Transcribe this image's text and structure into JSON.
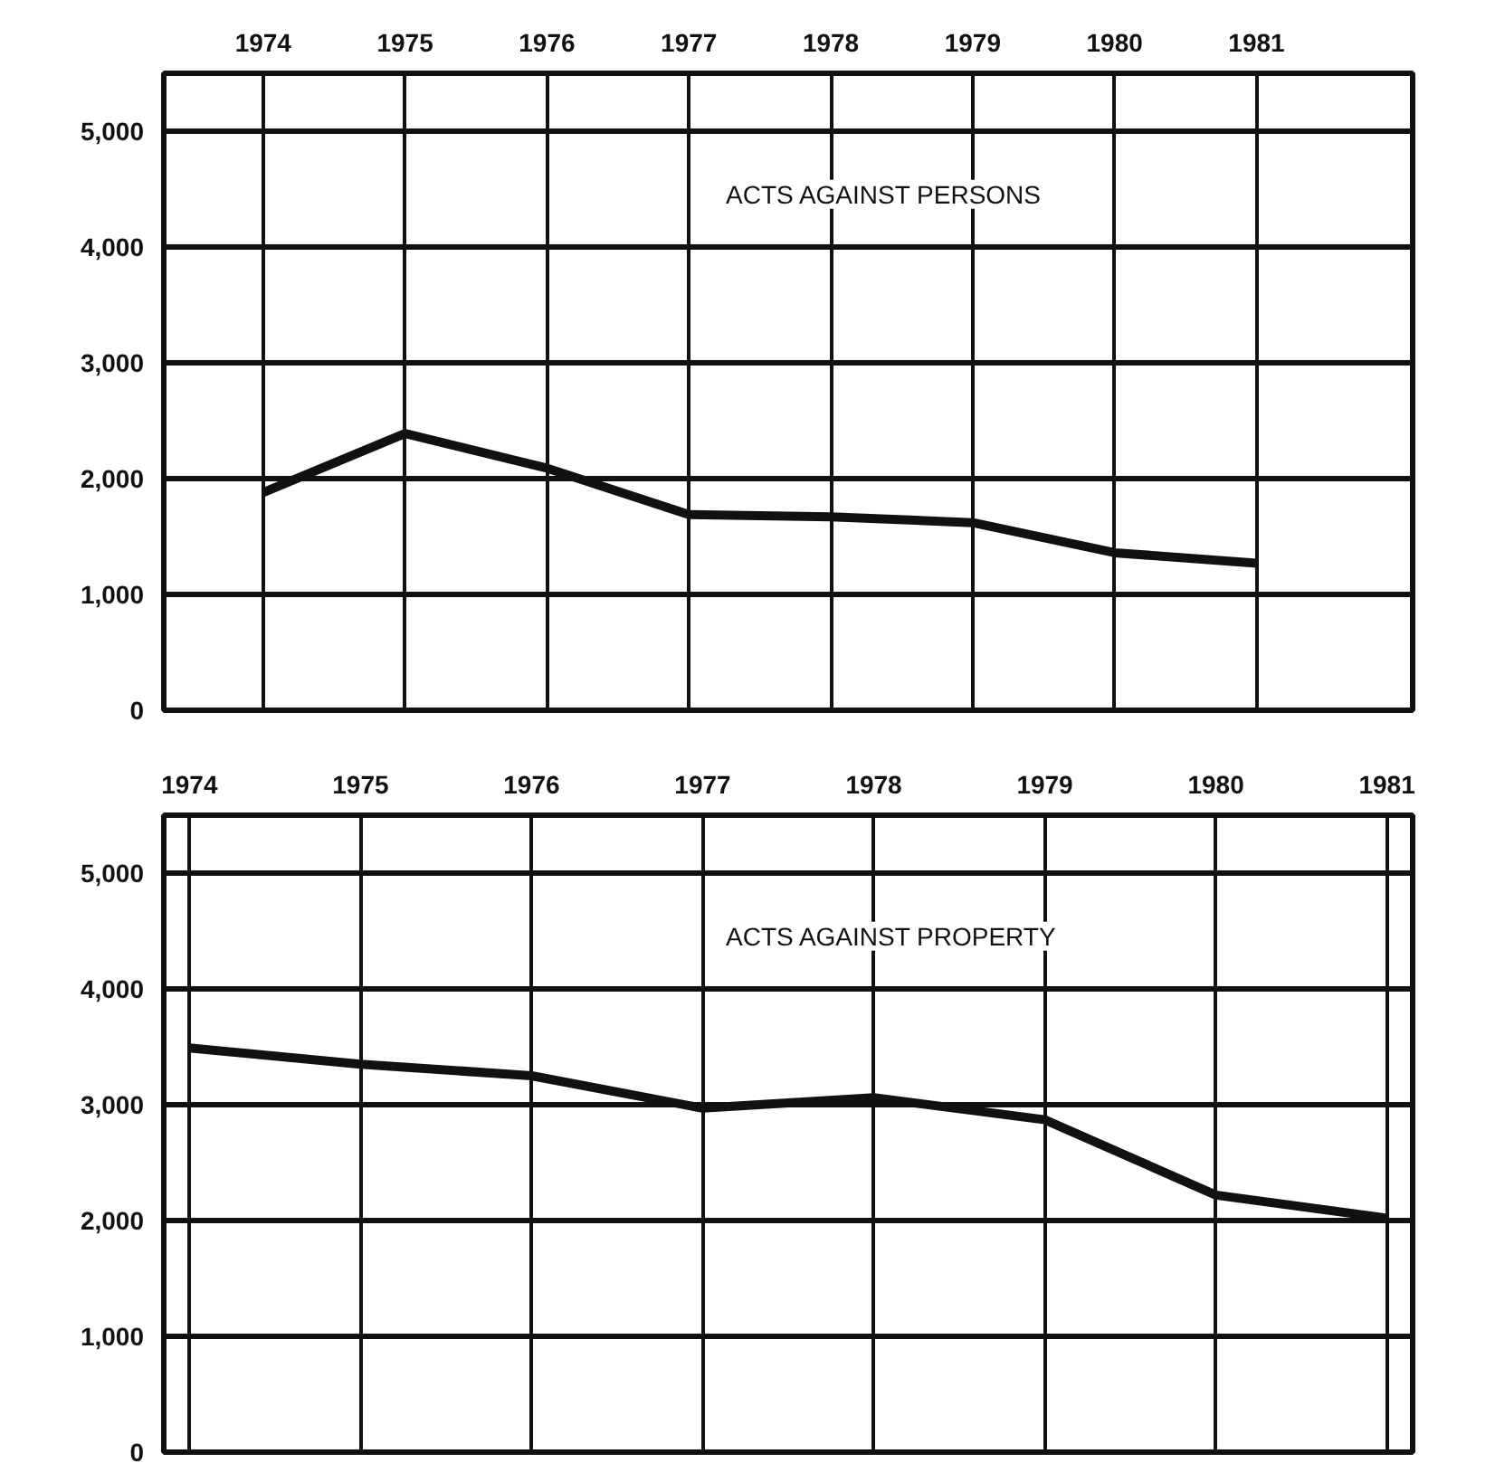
{
  "chart_data": [
    {
      "type": "line",
      "x": [
        1974,
        1975,
        1976,
        1977,
        1978,
        1979,
        1980,
        1981
      ],
      "values": [
        1880,
        2390,
        2090,
        1690,
        1670,
        1620,
        1360,
        1270
      ],
      "color": "#111111",
      "xlim": [
        1973.3,
        1982.1
      ],
      "ylim": [
        0,
        5500
      ],
      "xticks": [
        1974,
        1975,
        1976,
        1977,
        1978,
        1979,
        1980,
        1981
      ],
      "yticks": [
        0,
        {
          "value": 1000,
          "label": "1,000"
        },
        {
          "value": 2000,
          "label": "2,000"
        },
        {
          "value": 3000,
          "label": "3,000"
        },
        {
          "value": 4000,
          "label": "4,000"
        },
        {
          "value": 5000,
          "label": "5,000"
        }
      ],
      "grid": true,
      "annotations": [
        "ACTS AGAINST PERSONS"
      ]
    },
    {
      "type": "line",
      "x": [
        1974,
        1975,
        1976,
        1977,
        1978,
        1979,
        1980,
        1981
      ],
      "values": [
        3490,
        3350,
        3250,
        2970,
        3060,
        2870,
        2220,
        2020
      ],
      "color": "#111111",
      "xlim": [
        1973.85,
        1981.15
      ],
      "ylim": [
        0,
        5500
      ],
      "xticks": [
        1974,
        1975,
        1976,
        1977,
        1978,
        1979,
        1980,
        1981
      ],
      "yticks": [
        0,
        {
          "value": 1000,
          "label": "1,000"
        },
        {
          "value": 2000,
          "label": "2,000"
        },
        {
          "value": 3000,
          "label": "3,000"
        },
        {
          "value": 4000,
          "label": "4,000"
        },
        {
          "value": 5000,
          "label": "5,000"
        }
      ],
      "grid": true,
      "annotations": [
        "ACTS AGAINST PROPERTY"
      ]
    }
  ]
}
